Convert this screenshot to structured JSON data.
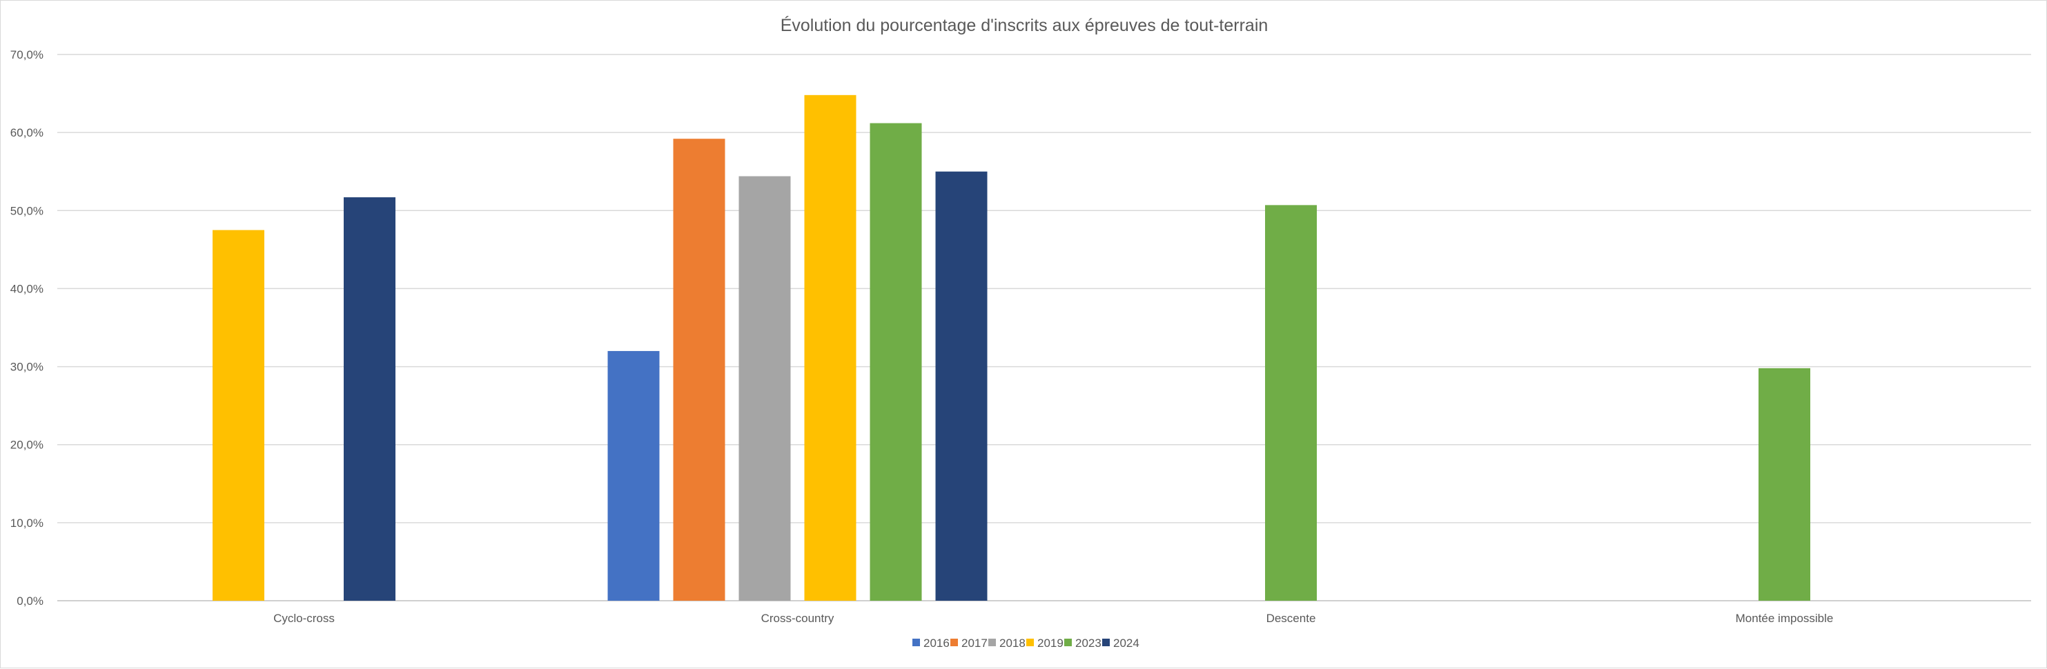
{
  "chart_data": {
    "type": "bar",
    "title": "Évolution du pourcentage d'inscrits aux épreuves de tout-terrain",
    "xlabel": "",
    "ylabel": "",
    "ylim": [
      0,
      70
    ],
    "y_ticks": [
      0,
      10,
      20,
      30,
      40,
      50,
      60,
      70
    ],
    "y_tick_labels": [
      "0,0%",
      "10,0%",
      "20,0%",
      "30,0%",
      "40,0%",
      "50,0%",
      "60,0%",
      "70,0%"
    ],
    "grid": true,
    "legend_position": "bottom",
    "categories": [
      "Cyclo-cross",
      "Cross-country",
      "Descente",
      "Montée impossible"
    ],
    "series": [
      {
        "name": "2016",
        "color": "#4472C4",
        "values": [
          null,
          32.0,
          null,
          null
        ]
      },
      {
        "name": "2017",
        "color": "#ED7D31",
        "values": [
          null,
          59.2,
          null,
          null
        ]
      },
      {
        "name": "2018",
        "color": "#A5A5A5",
        "values": [
          null,
          54.4,
          null,
          null
        ]
      },
      {
        "name": "2019",
        "color": "#FFC000",
        "values": [
          47.5,
          64.8,
          null,
          null
        ]
      },
      {
        "name": "2023",
        "color": "#70AD47",
        "values": [
          null,
          61.2,
          50.7,
          29.8
        ]
      },
      {
        "name": "2024",
        "color": "#264478",
        "values": [
          51.7,
          55.0,
          null,
          null
        ]
      }
    ]
  },
  "colors": {
    "grid": "#d9d9d9",
    "axis": "#bfbfbf",
    "text": "#595959"
  }
}
